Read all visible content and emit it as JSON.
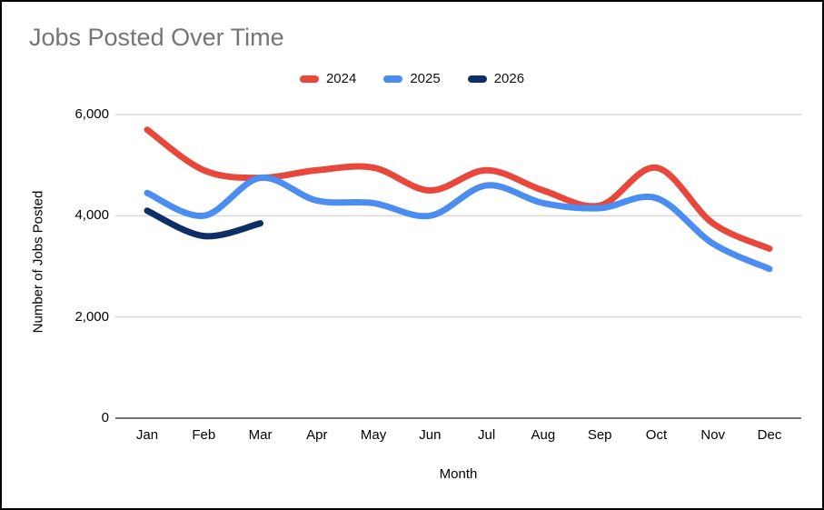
{
  "chart_data": {
    "type": "line",
    "title": "Jobs Posted Over Time",
    "xlabel": "Month",
    "ylabel": "Number of Jobs Posted",
    "categories": [
      "Jan",
      "Feb",
      "Mar",
      "Apr",
      "May",
      "Jun",
      "Jul",
      "Aug",
      "Sep",
      "Oct",
      "Nov",
      "Dec"
    ],
    "series": [
      {
        "name": "2024",
        "color": "#e8473c",
        "values": [
          5700,
          4900,
          4750,
          4900,
          4950,
          4500,
          4900,
          4500,
          4200,
          4950,
          3850,
          3350
        ]
      },
      {
        "name": "2025",
        "color": "#4c8df2",
        "values": [
          4450,
          4000,
          4750,
          4300,
          4250,
          4000,
          4600,
          4250,
          4150,
          4350,
          3450,
          2950
        ]
      },
      {
        "name": "2026",
        "color": "#0e2f66",
        "values": [
          4100,
          3600,
          3850,
          null,
          null,
          null,
          null,
          null,
          null,
          null,
          null,
          null
        ]
      }
    ],
    "ylim": [
      0,
      6000
    ],
    "yticks": [
      0,
      2000,
      4000,
      6000
    ],
    "ytick_labels": [
      "0",
      "2,000",
      "4,000",
      "6,000"
    ],
    "grid": true,
    "smooth": true,
    "legend_position": "top",
    "line_width": 7,
    "colors": {
      "title_text": "#757575",
      "gridline": "#d9d9d9",
      "axis_line": "#757575",
      "tick_text": "#000000"
    }
  }
}
